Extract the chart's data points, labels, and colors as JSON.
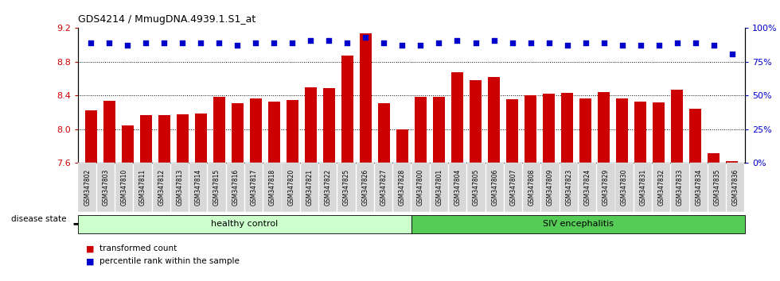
{
  "title": "GDS4214 / MmugDNA.4939.1.S1_at",
  "samples": [
    "GSM347802",
    "GSM347803",
    "GSM347810",
    "GSM347811",
    "GSM347812",
    "GSM347813",
    "GSM347814",
    "GSM347815",
    "GSM347816",
    "GSM347817",
    "GSM347818",
    "GSM347820",
    "GSM347821",
    "GSM347822",
    "GSM347825",
    "GSM347826",
    "GSM347827",
    "GSM347828",
    "GSM347800",
    "GSM347801",
    "GSM347804",
    "GSM347805",
    "GSM347806",
    "GSM347807",
    "GSM347808",
    "GSM347809",
    "GSM347823",
    "GSM347824",
    "GSM347829",
    "GSM347830",
    "GSM347831",
    "GSM347832",
    "GSM347833",
    "GSM347834",
    "GSM347835",
    "GSM347836"
  ],
  "bar_values": [
    8.22,
    8.34,
    8.05,
    8.17,
    8.17,
    8.18,
    8.19,
    8.38,
    8.31,
    8.37,
    8.33,
    8.35,
    8.5,
    8.49,
    8.87,
    9.14,
    8.31,
    8.0,
    8.38,
    8.38,
    8.68,
    8.58,
    8.62,
    8.36,
    8.4,
    8.42,
    8.43,
    8.37,
    8.44,
    8.37,
    8.33,
    8.32,
    8.47,
    8.24,
    7.72,
    7.62
  ],
  "percentile_values": [
    89,
    89,
    87,
    89,
    89,
    89,
    89,
    89,
    87,
    89,
    89,
    89,
    91,
    91,
    89,
    93,
    89,
    87,
    87,
    89,
    91,
    89,
    91,
    89,
    89,
    89,
    87,
    89,
    89,
    87,
    87,
    87,
    89,
    89,
    87,
    81
  ],
  "healthy_count": 18,
  "bar_color": "#cc0000",
  "dot_color": "#0000cc",
  "ylim_left": [
    7.6,
    9.2
  ],
  "ylim_right": [
    0,
    100
  ],
  "yticks_left": [
    7.6,
    8.0,
    8.4,
    8.8,
    9.2
  ],
  "yticks_right": [
    0,
    25,
    50,
    75,
    100
  ],
  "healthy_label": "healthy control",
  "disease_label": "SIV encephalitis",
  "healthy_color": "#ccffcc",
  "disease_color": "#55cc55",
  "disease_state_label": "disease state",
  "legend_bar_label": "transformed count",
  "legend_dot_label": "percentile rank within the sample",
  "tick_bg_color": "#d8d8d8"
}
